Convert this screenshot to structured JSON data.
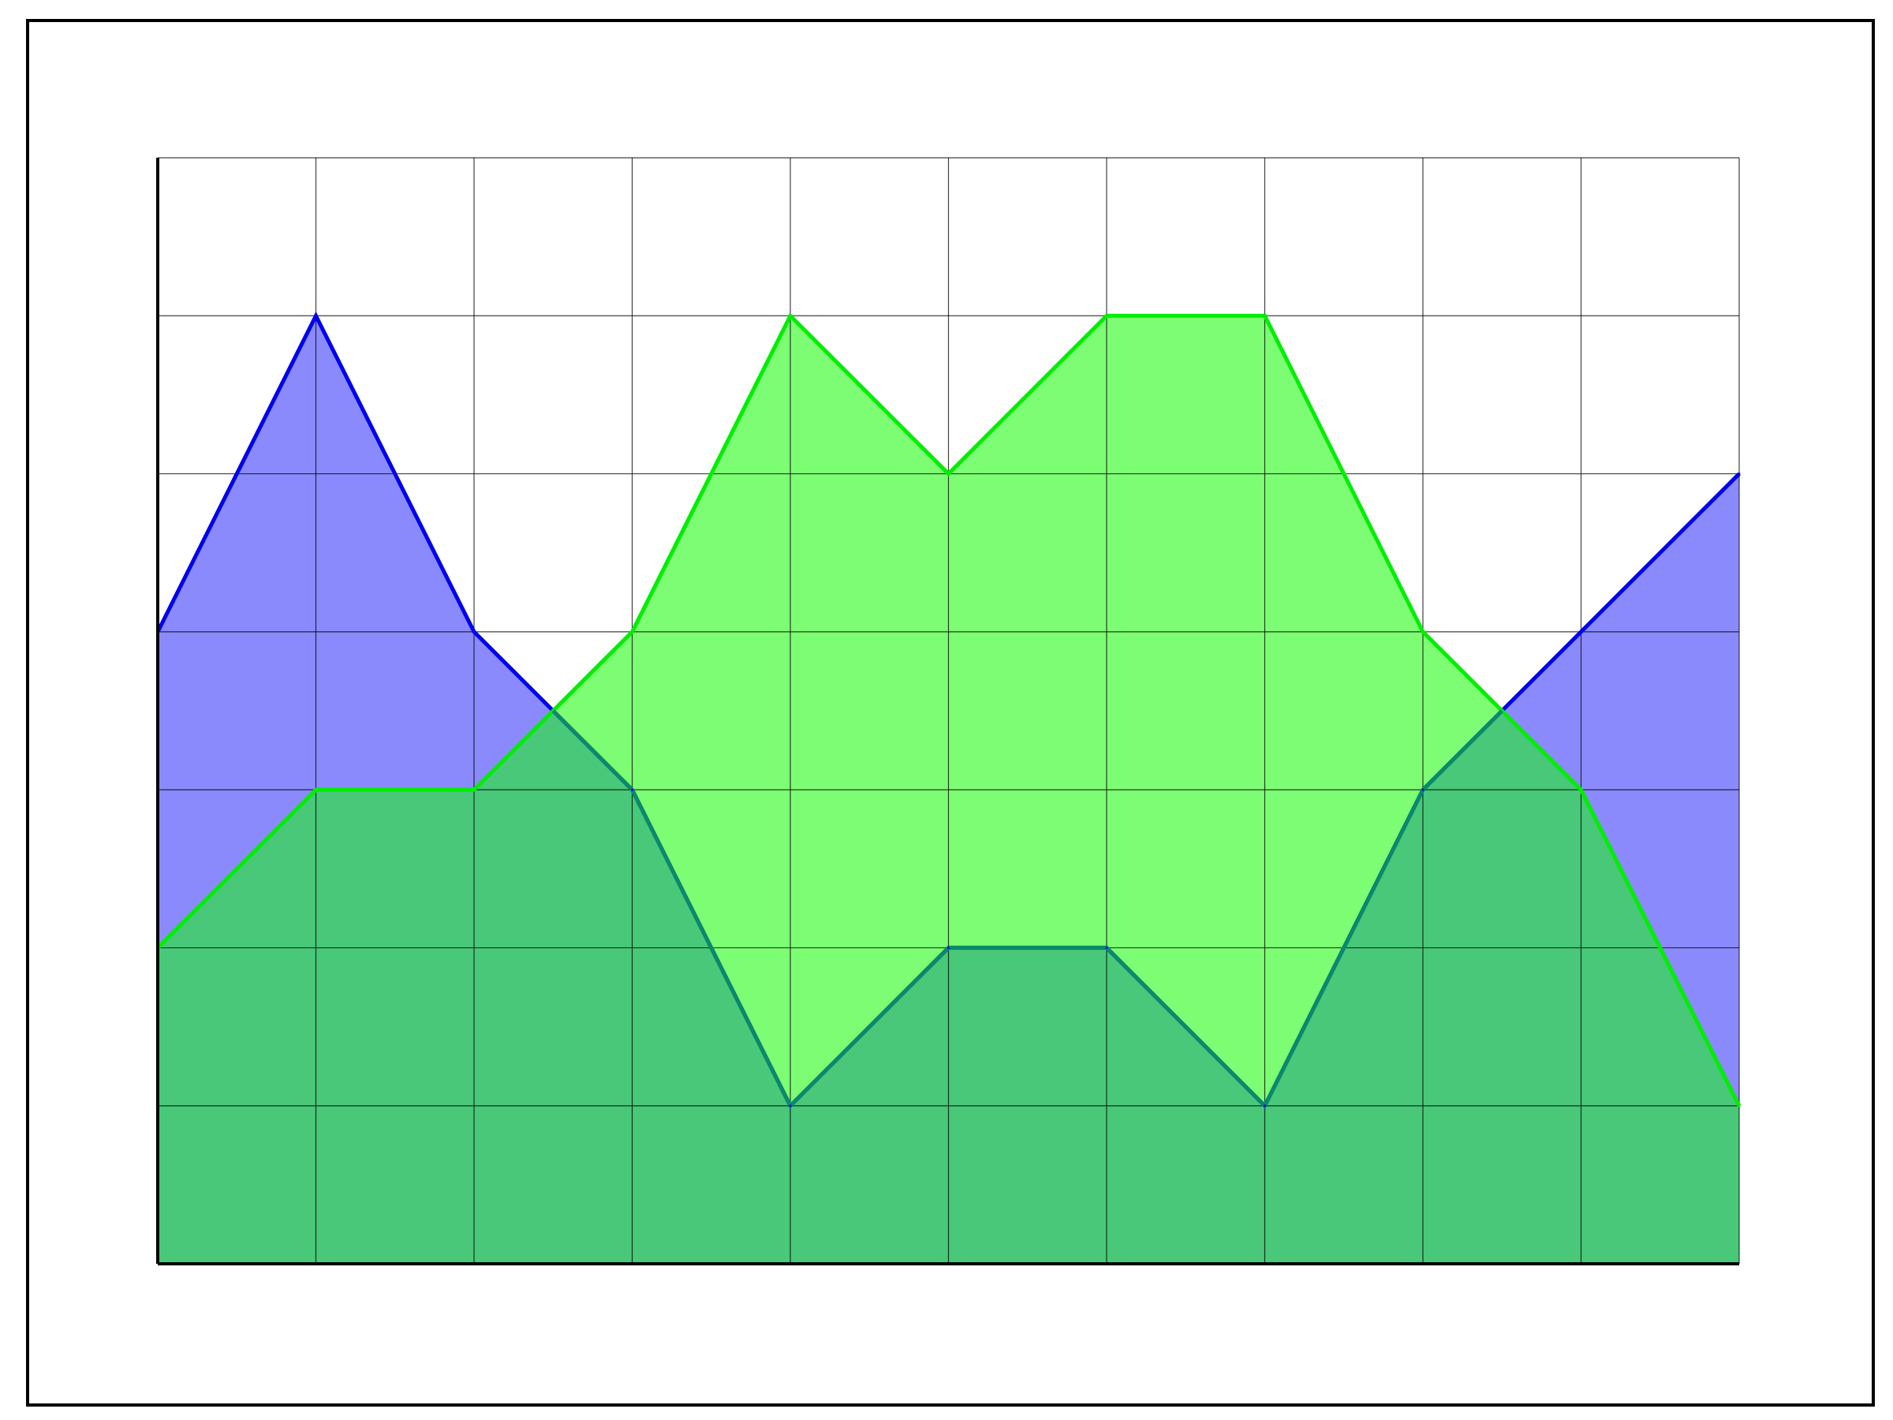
{
  "chart_data": {
    "type": "area",
    "x": [
      0,
      1,
      2,
      3,
      4,
      5,
      6,
      7,
      8,
      9,
      10
    ],
    "series": [
      {
        "values": [
          4,
          6,
          4,
          3,
          1,
          2,
          2,
          1,
          3,
          4,
          5
        ],
        "color": "#0000ee",
        "fill": "#8a8afc"
      },
      {
        "values": [
          2,
          3,
          3,
          4,
          6,
          5,
          6,
          6,
          4,
          3,
          1
        ],
        "color": "#00ee00",
        "fill": "#7dfd74"
      }
    ],
    "overlap_fill": "#48c878",
    "overlap_line": "#0a8a6a",
    "xlim": [
      0,
      10
    ],
    "ylim": [
      0,
      7
    ],
    "grid": true,
    "legend": "none",
    "title": "",
    "xlabel": "",
    "ylabel": ""
  }
}
